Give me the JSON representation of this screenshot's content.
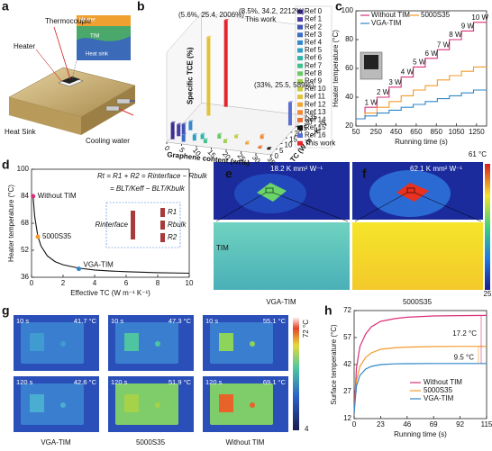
{
  "figure": {
    "panel_labels": [
      "a",
      "b",
      "c",
      "d",
      "e",
      "f",
      "g",
      "h"
    ]
  },
  "panel_a": {
    "labels": [
      "Thermocouple",
      "Heater",
      "Heat Sink",
      "Cooling water"
    ],
    "inset_labels": [
      "Heater",
      "TIM",
      "Heat sink"
    ]
  },
  "chart_data": [
    {
      "type": "bar3d",
      "ylabel": "Specific TCE (%)",
      "xlabel": "Graphene content (wt%)",
      "zlabel": "TC (W m⁻¹ K⁻¹)",
      "xticks": [
        0,
        5,
        10,
        15,
        20,
        25,
        30,
        35
      ],
      "zticks": [
        0,
        5,
        10,
        15,
        20,
        25,
        30,
        35
      ],
      "ylim": [
        0,
        2300
      ],
      "annotations": [
        "(5.6%, 25.4, 2006%)",
        "(8.5%, 34.2, 2212%)",
        "This work",
        "(33%, 25.5, 589%)"
      ],
      "series": [
        {
          "name": "Ref 0",
          "color": "#3b2c8f",
          "x": 1,
          "z": 3,
          "value": 420
        },
        {
          "name": "Ref 1",
          "color": "#4a3aa5",
          "x": 2,
          "z": 6,
          "value": 300
        },
        {
          "name": "Ref 2",
          "color": "#3f53b5",
          "x": 3,
          "z": 8,
          "value": 260
        },
        {
          "name": "Ref 3",
          "color": "#3a6cc4",
          "x": 5,
          "z": 2,
          "value": 180
        },
        {
          "name": "Ref 4",
          "color": "#3787cc",
          "x": 4,
          "z": 12,
          "value": 220
        },
        {
          "name": "Ref 5",
          "color": "#2f9fc4",
          "x": 8,
          "z": 4,
          "value": 150
        },
        {
          "name": "Ref 6",
          "color": "#2eb3ad",
          "x": 10,
          "z": 6,
          "value": 120
        },
        {
          "name": "Ref 7",
          "color": "#41c08e",
          "x": 12,
          "z": 3,
          "value": 90
        },
        {
          "name": "Ref 8",
          "color": "#6cc96a",
          "x": 15,
          "z": 8,
          "value": 110
        },
        {
          "name": "Ref 9",
          "color": "#9ccf4e",
          "x": 18,
          "z": 5,
          "value": 80
        },
        {
          "name": "Ref 10",
          "color": "#c7cf3f",
          "x": 20,
          "z": 10,
          "value": 70
        },
        {
          "name": "Ref 11",
          "color": "#e3c23b",
          "x": 5.6,
          "z": 25.4,
          "value": 2006
        },
        {
          "name": "Ref 12",
          "color": "#f0a537",
          "x": 25,
          "z": 6,
          "value": 60
        },
        {
          "name": "Ref 13",
          "color": "#f18a35",
          "x": 28,
          "z": 12,
          "value": 90
        },
        {
          "name": "Ref 14",
          "color": "#ec6d33",
          "x": 30,
          "z": 4,
          "value": 50
        },
        {
          "name": "Ref 15",
          "color": "#111111",
          "x": 33,
          "z": 4,
          "value": 40
        },
        {
          "name": "Ref 16",
          "color": "#5a6fd0",
          "x": 33,
          "z": 25.5,
          "value": 589
        },
        {
          "name": "This work",
          "color": "#e3262b",
          "x": 8.5,
          "z": 34.2,
          "value": 2212
        }
      ]
    },
    {
      "type": "step",
      "xlabel": "Running time (s)",
      "ylabel": "Heater temperature (°C)",
      "xlim": [
        50,
        1350
      ],
      "xticks": [
        50,
        250,
        450,
        650,
        850,
        1050,
        1250
      ],
      "ylim": [
        20,
        100
      ],
      "yticks": [
        20,
        40,
        60,
        80,
        100
      ],
      "annotations": [
        "1 W",
        "2 W",
        "3 W",
        "4 W",
        "5 W",
        "6 W",
        "7 W",
        "8 W",
        "9 W",
        "10 W"
      ],
      "x": [
        50,
        140,
        260,
        380,
        500,
        620,
        740,
        860,
        980,
        1100,
        1220,
        1350
      ],
      "series": [
        {
          "name": "Without TIM",
          "color": "#d9307a",
          "values": [
            25,
            33,
            40,
            47,
            54,
            61,
            67,
            73,
            80,
            86,
            92,
            92
          ]
        },
        {
          "name": "5000S35",
          "color": "#f39a2c",
          "values": [
            25,
            29,
            33,
            37,
            41,
            45,
            48,
            52,
            55,
            58,
            61,
            61
          ]
        },
        {
          "name": "VGA-TIM",
          "color": "#2f86c8",
          "values": [
            25,
            27,
            29,
            31,
            33,
            35,
            37,
            39,
            41,
            43,
            45,
            45
          ]
        }
      ]
    },
    {
      "type": "curve",
      "xlabel": "Effective TC (W m⁻¹ K⁻¹)",
      "ylabel": "Heater temperature (°C)",
      "xlim": [
        0,
        10
      ],
      "xticks": [
        0,
        2,
        4,
        6,
        8,
        10
      ],
      "ylim": [
        36,
        100
      ],
      "yticks": [
        36,
        52,
        68,
        84,
        100
      ],
      "x": [
        0.1,
        0.2,
        0.4,
        0.6,
        1,
        1.5,
        2,
        3,
        4,
        5,
        6,
        8,
        10
      ],
      "values": [
        83.7,
        72,
        60.3,
        54.5,
        48.7,
        45.2,
        43.4,
        41.4,
        40.3,
        39.7,
        39.3,
        38.7,
        38.4
      ],
      "points": [
        {
          "name": "Without TIM",
          "color": "#d9307a",
          "x": 0.1,
          "value": 84
        },
        {
          "name": "5000S35",
          "color": "#f39a2c",
          "x": 0.4,
          "value": 60
        },
        {
          "name": "VGA-TIM",
          "color": "#2f86c8",
          "x": 3,
          "value": 41
        }
      ],
      "formula": [
        "Rt = R1 + R2 = Rinterface − Rbulk",
        "= BLT/Keff − BLT/Kbulk"
      ],
      "circuit_labels": [
        "Rinterface",
        "R1",
        "Rbulk",
        "R2"
      ]
    },
    {
      "type": "line",
      "xlabel": "Running time (s)",
      "ylabel": "Surface temperature (°C)",
      "xlim": [
        0,
        115
      ],
      "xticks": [
        0,
        23,
        46,
        69,
        92,
        115
      ],
      "ylim": [
        12,
        72
      ],
      "yticks": [
        12,
        27,
        42,
        57,
        72
      ],
      "annotations": [
        "17.2 °C",
        "9.5 °C"
      ],
      "x": [
        0,
        2,
        5,
        10,
        15,
        23,
        35,
        46,
        69,
        92,
        115
      ],
      "series": [
        {
          "name": "Without TIM",
          "color": "#d9307a",
          "values": [
            15,
            40,
            52,
            59,
            63,
            66,
            67.5,
            68.3,
            69,
            69.2,
            69.3
          ]
        },
        {
          "name": "5000S35",
          "color": "#f39a2c",
          "values": [
            15,
            33,
            41,
            46,
            48.5,
            50.5,
            51.3,
            51.7,
            52,
            52.1,
            52.1
          ]
        },
        {
          "name": "VGA-TIM",
          "color": "#2f86c8",
          "values": [
            15,
            30,
            36,
            39.5,
            41,
            42,
            42.4,
            42.5,
            42.6,
            42.6,
            42.6
          ]
        }
      ]
    }
  ],
  "panel_ef": {
    "resistances": [
      "18.2 K mm² W⁻¹",
      "62.1 K mm² W⁻¹"
    ],
    "layer_label": "TIM",
    "captions": [
      "VGA-TIM",
      "5000S35"
    ],
    "colorbar": [
      "61 °C",
      "25"
    ]
  },
  "panel_g": {
    "times": [
      "10 s",
      "120 s"
    ],
    "temperatures": [
      [
        "41.7 °C",
        "47.3 °C",
        "55.1 °C"
      ],
      [
        "42.6 °C",
        "51.9 °C",
        "69.1 °C"
      ]
    ],
    "captions": [
      "VGA-TIM",
      "5000S35",
      "Without TIM"
    ],
    "colorbar": [
      "72 °C",
      "4"
    ]
  }
}
